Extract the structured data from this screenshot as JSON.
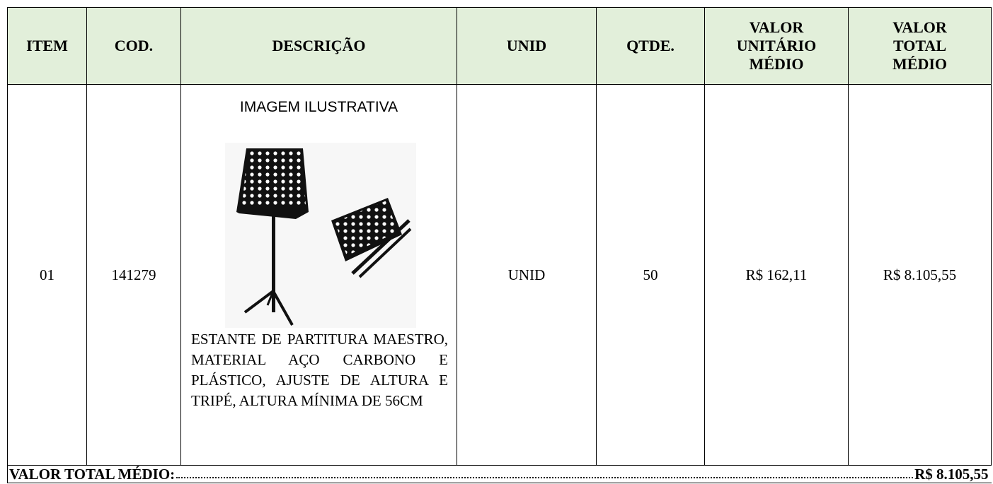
{
  "table": {
    "header": [
      "ITEM",
      "COD.",
      "DESCRIÇÃO",
      "UNID",
      "QTDE.",
      "VALOR UNITÁRIO MÉDIO",
      "VALOR TOTAL MÉDIO"
    ],
    "rows": [
      {
        "item": "01",
        "code": "141279",
        "image_caption": "IMAGEM ILUSTRATIVA",
        "description": "ESTANTE DE PARTITURA MAESTRO, MATERIAL AÇO CARBONO E PLÁSTICO, AJUSTE DE ALTURA E TRIPÉ, ALTURA MÍNIMA DE 56CM",
        "unit": "UNID",
        "quantity": "50",
        "unit_value": "R$ 162,11",
        "total_value": "R$ 8.105,55"
      }
    ],
    "footer": {
      "label": "VALOR TOTAL MÉDIO:",
      "value": "R$ 8.105,55"
    }
  }
}
